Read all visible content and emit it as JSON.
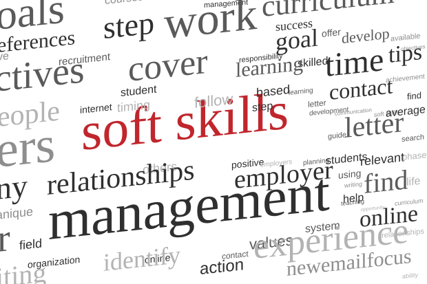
{
  "colors": {
    "accent": "#c0262c",
    "dark": "#2f2f2f",
    "mid": "#5a5a5a",
    "light": "#8e8e8e",
    "faint": "#b3b3b3",
    "background": "#ffffff"
  },
  "words": [
    {
      "id": "soft-skills",
      "text": "soft skills",
      "color": "accent"
    },
    {
      "id": "goals",
      "text": "oals",
      "color": "mid"
    },
    {
      "id": "courses",
      "text": "courses",
      "color": "light"
    },
    {
      "id": "management-small",
      "text": "management",
      "color": "dark"
    },
    {
      "id": "curriculum",
      "text": "curriculum",
      "color": "mid"
    },
    {
      "id": "step-big",
      "text": "step",
      "color": "dark"
    },
    {
      "id": "work",
      "text": "work",
      "color": "mid"
    },
    {
      "id": "success",
      "text": "success",
      "color": "dark"
    },
    {
      "id": "offer",
      "text": "offer",
      "color": "mid"
    },
    {
      "id": "develop",
      "text": "develop",
      "color": "mid"
    },
    {
      "id": "available",
      "text": "available",
      "color": "light"
    },
    {
      "id": "objectives",
      "text": "objectives",
      "color": "light"
    },
    {
      "id": "goal",
      "text": "goal",
      "color": "dark"
    },
    {
      "id": "tips",
      "text": "tips",
      "color": "dark"
    },
    {
      "id": "eferences",
      "text": "eferences",
      "color": "dark"
    },
    {
      "id": "recruitment",
      "text": "recruitment",
      "color": "mid"
    },
    {
      "id": "responsibility",
      "text": "responsibility",
      "color": "dark"
    },
    {
      "id": "skilled",
      "text": "skilled",
      "color": "dark"
    },
    {
      "id": "ve",
      "text": "ve",
      "color": "light"
    },
    {
      "id": "ctives",
      "text": "ctives",
      "color": "mid"
    },
    {
      "id": "cover",
      "text": "cover",
      "color": "mid"
    },
    {
      "id": "learning-big",
      "text": "learning",
      "color": "mid"
    },
    {
      "id": "time",
      "text": "time",
      "color": "dark"
    },
    {
      "id": "achievement",
      "text": "achievement",
      "color": "light"
    },
    {
      "id": "student",
      "text": "student",
      "color": "dark"
    },
    {
      "id": "based",
      "text": "based",
      "color": "dark"
    },
    {
      "id": "learning-small",
      "text": "learning",
      "color": "mid"
    },
    {
      "id": "contact-big",
      "text": "contact",
      "color": "dark"
    },
    {
      "id": "find-small",
      "text": "find",
      "color": "dark"
    },
    {
      "id": "follow",
      "text": "follow",
      "color": "faint"
    },
    {
      "id": "letter-small",
      "text": "letter",
      "color": "mid"
    },
    {
      "id": "internet",
      "text": "internet",
      "color": "dark"
    },
    {
      "id": "timing",
      "text": "timing",
      "color": "faint"
    },
    {
      "id": "step-small",
      "text": "step",
      "color": "dark"
    },
    {
      "id": "development",
      "text": "development",
      "color": "mid"
    },
    {
      "id": "communication",
      "text": "communication",
      "color": "light"
    },
    {
      "id": "soft-skills-small",
      "text": "soft skills",
      "color": "light"
    },
    {
      "id": "average",
      "text": "average",
      "color": "dark"
    },
    {
      "id": "eople",
      "text": "eople",
      "color": "faint"
    },
    {
      "id": "letter-big",
      "text": "letter",
      "color": "mid"
    },
    {
      "id": "guide",
      "text": "guide",
      "color": "mid"
    },
    {
      "id": "search",
      "text": "search",
      "color": "mid"
    },
    {
      "id": "ers",
      "text": "ers",
      "color": "light"
    },
    {
      "id": "others",
      "text": "others",
      "color": "faint"
    },
    {
      "id": "positive",
      "text": "positive",
      "color": "dark"
    },
    {
      "id": "employers",
      "text": "employers",
      "color": "faint"
    },
    {
      "id": "planning",
      "text": "planning",
      "color": "mid"
    },
    {
      "id": "students",
      "text": "students",
      "color": "dark"
    },
    {
      "id": "relevant",
      "text": "relevant",
      "color": "dark"
    },
    {
      "id": "phase",
      "text": "phase",
      "color": "faint"
    },
    {
      "id": "ny",
      "text": "ny",
      "color": "dark"
    },
    {
      "id": "relationships",
      "text": "relationships",
      "color": "dark"
    },
    {
      "id": "employer",
      "text": "employer",
      "color": "dark"
    },
    {
      "id": "using",
      "text": "using",
      "color": "mid"
    },
    {
      "id": "find-big",
      "text": "find",
      "color": "mid"
    },
    {
      "id": "life",
      "text": "life",
      "color": "faint"
    },
    {
      "id": "writing-small",
      "text": "writing",
      "color": "light"
    },
    {
      "id": "help",
      "text": "help",
      "color": "dark"
    },
    {
      "id": "teaching",
      "text": "teaching",
      "color": "mid"
    },
    {
      "id": "curriculum-small",
      "text": "curriculum",
      "color": "light"
    },
    {
      "id": "opportunity",
      "text": "opportunity",
      "color": "faint"
    },
    {
      "id": "anique",
      "text": "anique",
      "color": "light"
    },
    {
      "id": "management-big",
      "text": "management",
      "color": "dark"
    },
    {
      "id": "online-big",
      "text": "online",
      "color": "dark"
    },
    {
      "id": "system",
      "text": "system",
      "color": "mid"
    },
    {
      "id": "field",
      "text": "field",
      "color": "dark"
    },
    {
      "id": "values",
      "text": "values",
      "color": "mid"
    },
    {
      "id": "experience",
      "text": "experience",
      "color": "faint"
    },
    {
      "id": "relationships-small",
      "text": "relationships",
      "color": "faint"
    },
    {
      "id": "organization",
      "text": "organization",
      "color": "dark"
    },
    {
      "id": "online-small",
      "text": "online",
      "color": "dark"
    },
    {
      "id": "contact-small",
      "text": "contact",
      "color": "mid"
    },
    {
      "id": "identify",
      "text": "identify",
      "color": "faint"
    },
    {
      "id": "action",
      "text": "action",
      "color": "dark"
    },
    {
      "id": "newemailfocus",
      "text": "newemailfocus",
      "color": "light"
    },
    {
      "id": "writing-big",
      "text": "iting",
      "color": "faint"
    },
    {
      "id": "r-edge",
      "text": "r",
      "color": "mid"
    },
    {
      "id": "ability",
      "text": "ability",
      "color": "faint"
    }
  ]
}
